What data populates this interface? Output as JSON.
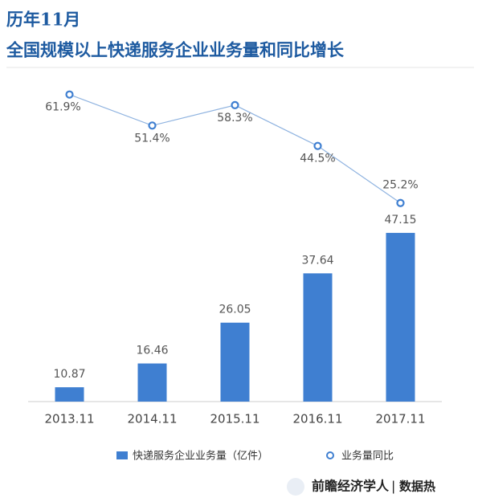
{
  "chart_data": {
    "type": "bar-line",
    "title": "历年11月",
    "subtitle": "全国规模以上快递服务企业业务量和同比增长",
    "categories": [
      "2013.11",
      "2014.11",
      "2015.11",
      "2016.11",
      "2017.11"
    ],
    "series": [
      {
        "name": "快递服务企业业务量（亿件）",
        "type": "bar",
        "color": "#3f7fd1",
        "values": [
          10.87,
          16.46,
          26.05,
          37.64,
          47.15
        ]
      },
      {
        "name": "业务量同比",
        "type": "line",
        "axis": "y2",
        "color": "#8fb3e0",
        "values": [
          61.9,
          51.4,
          58.3,
          44.5,
          25.2
        ],
        "value_labels": [
          "61.9%",
          "51.4%",
          "58.3%",
          "44.5%",
          "25.2%"
        ]
      }
    ],
    "ylim": [
      7.5,
      83
    ],
    "y2lim": [
      -42,
      66.7
    ],
    "legend": "bottom"
  },
  "footer": {
    "brand": "前瞻经济学人",
    "section": "数据热"
  }
}
